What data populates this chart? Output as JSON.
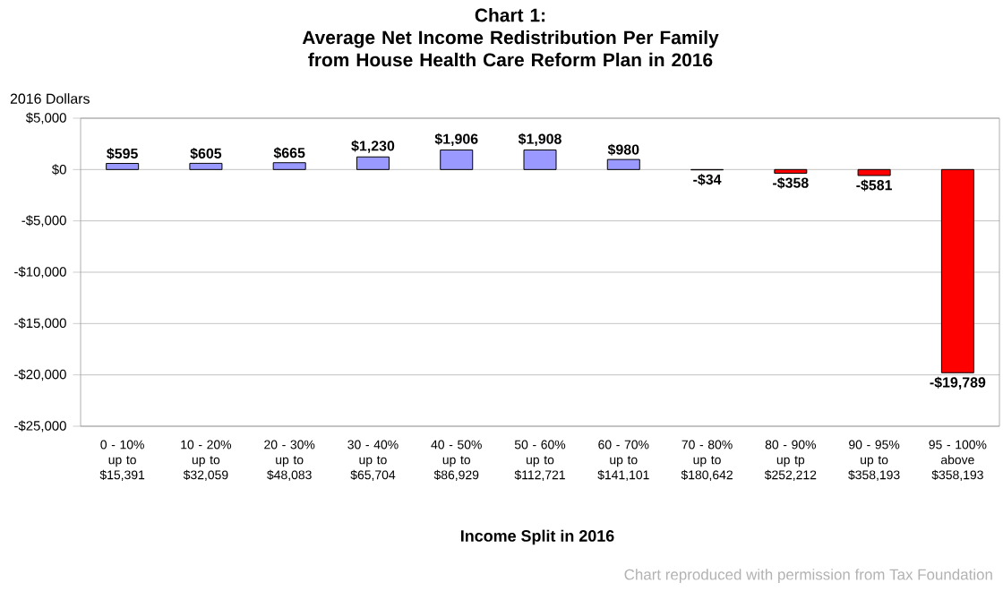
{
  "chart_data": {
    "type": "bar",
    "title": "Chart 1:\nAverage Net Income Redistribution Per Family\nfrom House Health Care Reform Plan in 2016",
    "xlabel": "Income Split in 2016",
    "categories": [
      "0 - 10%\nup to\n$15,391",
      "10 - 20%\nup to\n$32,059",
      "20 - 30%\nup to\n$48,083",
      "30 - 40%\nup to\n$65,704",
      "40 - 50%\nup to\n$86,929",
      "50 - 60%\nup to\n$112,721",
      "60 - 70%\nup to\n$141,101",
      "70 - 80%\nup to\n$180,642",
      "80 - 90%\nup tp\n$252,212",
      "90 - 95%\nup to\n$358,193",
      "95 - 100%\nabove\n$358,193"
    ],
    "values": [
      595,
      605,
      665,
      1230,
      1906,
      1908,
      980,
      -34,
      -358,
      -581,
      -19789
    ],
    "value_labels": [
      "$595",
      "$605",
      "$665",
      "$1,230",
      "$1,906",
      "$1,908",
      "$980",
      "-$34",
      "-$358",
      "-$581",
      "-$19,789"
    ],
    "colors": [
      "#9999ff",
      "#9999ff",
      "#9999ff",
      "#9999ff",
      "#9999ff",
      "#9999ff",
      "#9999ff",
      "#ff0000",
      "#ff0000",
      "#ff0000",
      "#ff0000"
    ],
    "ylim": [
      -25000,
      5000
    ],
    "yticks": [
      {
        "value": -25000,
        "label": "-$25,000"
      },
      {
        "value": -20000,
        "label": "-$20,000"
      },
      {
        "value": -15000,
        "label": "-$15,000"
      },
      {
        "value": -10000,
        "label": "-$10,000"
      },
      {
        "value": -5000,
        "label": "-$5,000"
      },
      {
        "value": 0,
        "label": "$0"
      },
      {
        "value": 5000,
        "label": "$5,000"
      }
    ],
    "grid": "y",
    "annotations": [
      "2016 Dollars",
      "Chart reproduced with permission from Tax Foundation"
    ]
  }
}
